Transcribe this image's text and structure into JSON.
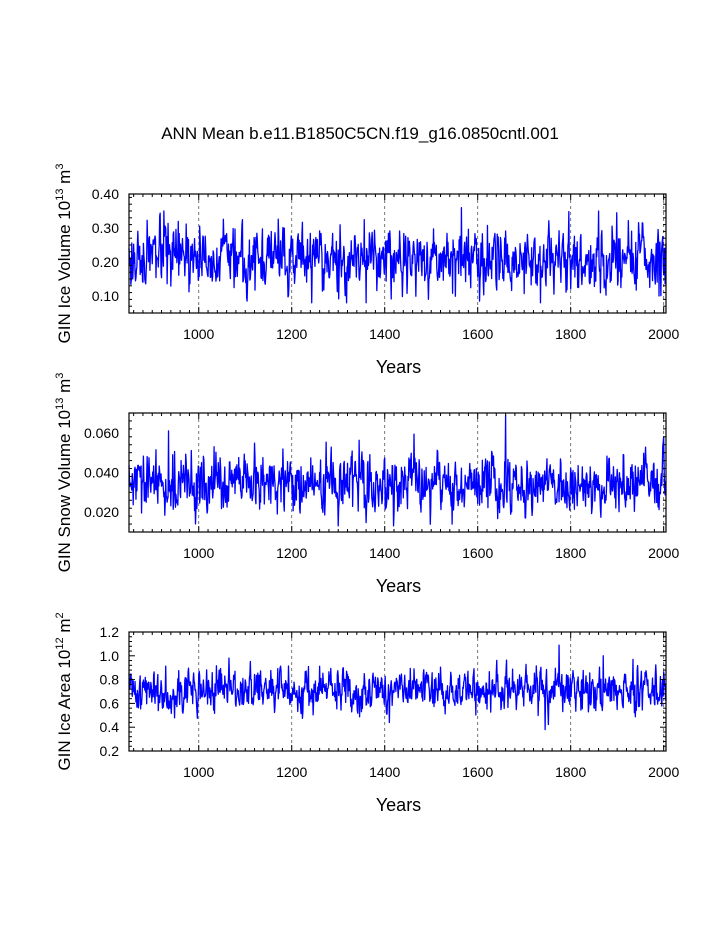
{
  "figure": {
    "title": "ANN Mean b.e11.B1850C5CN.f19_g16.0850cntl.001"
  },
  "chart_data": [
    {
      "type": "line",
      "xlabel": "Years",
      "ylabel": "GIN Ice Volume 10",
      "ylabel_exp": "13",
      "ylabel_unit": "m",
      "ylabel_unit_exp": "3",
      "xlim": [
        850,
        2005
      ],
      "ylim": [
        0.05,
        0.4
      ],
      "xticks": [
        1000,
        1200,
        1400,
        1600,
        1800,
        2000
      ],
      "xtick_labels": [
        "1000",
        "1200",
        "1400",
        "1600",
        "1800",
        "2000"
      ],
      "yticks": [
        0.1,
        0.2,
        0.3,
        0.4
      ],
      "ytick_labels": [
        "0.10",
        "0.20",
        "0.30",
        "0.40"
      ],
      "ymin_tick": 0.05,
      "yminor_step": 0.02,
      "vgrid": [
        1000,
        1200,
        1400,
        1600,
        1800,
        2000
      ],
      "series": [
        {
          "name": "GIN Ice Volume",
          "color": "#0000ff",
          "mean": 0.21,
          "spread": 0.05,
          "min": 0.08,
          "max": 0.36,
          "seed": 17,
          "peaks": [
            [
              925,
              0.35
            ],
            [
              1565,
              0.36
            ],
            [
              1735,
              0.08
            ],
            [
              1860,
              0.35
            ],
            [
              1990,
              0.1
            ]
          ]
        }
      ]
    },
    {
      "type": "line",
      "xlabel": "Years",
      "ylabel": "GIN Snow Volume 10",
      "ylabel_exp": "13",
      "ylabel_unit": "m",
      "ylabel_unit_exp": "3",
      "xlim": [
        850,
        2005
      ],
      "ylim": [
        0.01,
        0.07
      ],
      "xticks": [
        1000,
        1200,
        1400,
        1600,
        1800,
        2000
      ],
      "xtick_labels": [
        "1000",
        "1200",
        "1400",
        "1600",
        "1800",
        "2000"
      ],
      "yticks": [
        0.02,
        0.04,
        0.06
      ],
      "ytick_labels": [
        "0.020",
        "0.040",
        "0.060"
      ],
      "ymin_tick": 0.01,
      "yminor_step": 0.004,
      "vgrid": [
        1000,
        1200,
        1400,
        1600,
        1800,
        2000
      ],
      "series": [
        {
          "name": "GIN Snow Volume",
          "color": "#0000ff",
          "mean": 0.034,
          "spread": 0.008,
          "min": 0.013,
          "max": 0.069,
          "seed": 29,
          "peaks": [
            [
              935,
              0.061
            ],
            [
              1660,
              0.069
            ],
            [
              1545,
              0.014
            ],
            [
              2000,
              0.058
            ]
          ]
        }
      ]
    },
    {
      "type": "line",
      "xlabel": "Years",
      "ylabel": "GIN Ice Area 10",
      "ylabel_exp": "12",
      "ylabel_unit": "m",
      "ylabel_unit_exp": "2",
      "xlim": [
        850,
        2005
      ],
      "ylim": [
        0.2,
        1.2
      ],
      "xticks": [
        1000,
        1200,
        1400,
        1600,
        1800,
        2000
      ],
      "xtick_labels": [
        "1000",
        "1200",
        "1400",
        "1600",
        "1800",
        "2000"
      ],
      "yticks": [
        0.2,
        0.4,
        0.6,
        0.8,
        1.0,
        1.2
      ],
      "ytick_labels": [
        "0.2",
        "0.4",
        "0.6",
        "0.8",
        "1.0",
        "1.2"
      ],
      "ymin_tick": 0.2,
      "yminor_step": 0.04,
      "vgrid": [
        1000,
        1200,
        1400,
        1600,
        1800,
        2000
      ],
      "series": [
        {
          "name": "GIN Ice Area",
          "color": "#0000ff",
          "mean": 0.71,
          "spread": 0.1,
          "min": 0.38,
          "max": 1.09,
          "seed": 41,
          "peaks": [
            [
              1775,
              1.09
            ],
            [
              1745,
              0.38
            ],
            [
              1870,
              1.0
            ],
            [
              1065,
              0.98
            ],
            [
              1410,
              0.44
            ]
          ]
        }
      ]
    }
  ]
}
